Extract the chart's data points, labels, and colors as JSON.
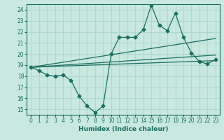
{
  "xlabel": "Humidex (Indice chaleur)",
  "bg_color": "#c8e8e0",
  "grid_color": "#b0d8d0",
  "line_color": "#1a6e60",
  "xlim": [
    -0.5,
    23.5
  ],
  "ylim": [
    14.5,
    24.5
  ],
  "yticks": [
    15,
    16,
    17,
    18,
    19,
    20,
    21,
    22,
    23,
    24
  ],
  "xticks": [
    0,
    1,
    2,
    3,
    4,
    5,
    6,
    7,
    8,
    9,
    10,
    11,
    12,
    13,
    14,
    15,
    16,
    17,
    18,
    19,
    20,
    21,
    22,
    23
  ],
  "main_line": [
    [
      0,
      18.8
    ],
    [
      1,
      18.5
    ],
    [
      2,
      18.1
    ],
    [
      3,
      18.0
    ],
    [
      4,
      18.1
    ],
    [
      5,
      17.6
    ],
    [
      6,
      16.2
    ],
    [
      7,
      15.3
    ],
    [
      8,
      14.7
    ],
    [
      9,
      15.3
    ],
    [
      10,
      20.0
    ],
    [
      11,
      21.5
    ],
    [
      12,
      21.5
    ],
    [
      13,
      21.5
    ],
    [
      14,
      22.2
    ],
    [
      15,
      24.4
    ],
    [
      16,
      22.6
    ],
    [
      17,
      22.1
    ],
    [
      18,
      23.7
    ],
    [
      19,
      21.5
    ],
    [
      20,
      20.1
    ],
    [
      21,
      19.3
    ],
    [
      22,
      19.1
    ],
    [
      23,
      19.5
    ]
  ],
  "trend_line1": [
    [
      0,
      18.8
    ],
    [
      23,
      19.4
    ]
  ],
  "trend_line2": [
    [
      0,
      18.8
    ],
    [
      23,
      19.9
    ]
  ],
  "trend_line3": [
    [
      0,
      18.8
    ],
    [
      23,
      21.4
    ]
  ]
}
